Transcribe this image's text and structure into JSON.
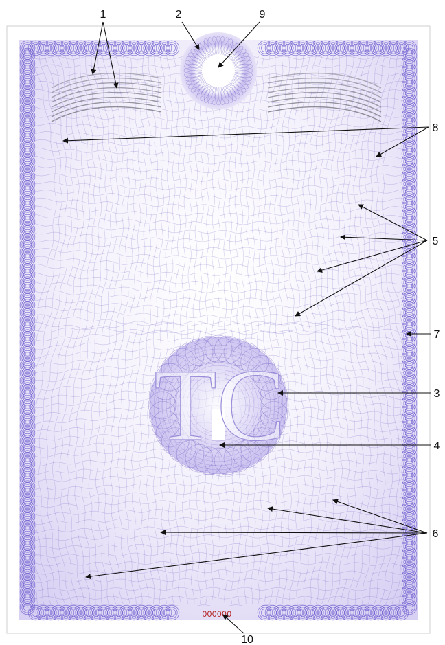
{
  "document": {
    "monogram": "TC",
    "serial_number": "000000",
    "colors": {
      "guilloche": "#7a6bc6",
      "border": "#6a5acd",
      "paper": "#ffffff",
      "serial": "#b22222",
      "callout": "#111111"
    }
  },
  "callouts": [
    {
      "id": "c1",
      "label": "1"
    },
    {
      "id": "c2",
      "label": "2"
    },
    {
      "id": "c9",
      "label": "9"
    },
    {
      "id": "c8",
      "label": "8"
    },
    {
      "id": "c5",
      "label": "5"
    },
    {
      "id": "c7",
      "label": "7"
    },
    {
      "id": "c3",
      "label": "3"
    },
    {
      "id": "c4",
      "label": "4"
    },
    {
      "id": "c6",
      "label": "6"
    },
    {
      "id": "c10",
      "label": "10"
    }
  ]
}
